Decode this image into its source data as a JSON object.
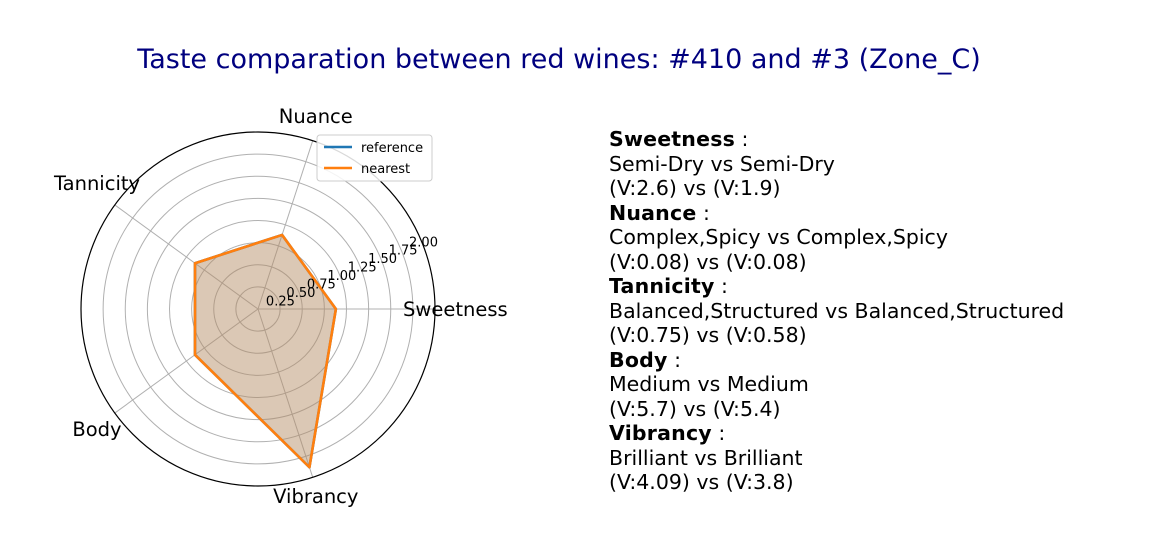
{
  "title": "Taste comparation between red wines: #410 and #3 (Zone_C)",
  "colors": {
    "title": "#00007f",
    "reference": "#1f77b4",
    "nearest": "#ff7f0e",
    "fill": "#b48c64",
    "grid": "#b0b0b0"
  },
  "chart_data": {
    "type": "radar",
    "axes": [
      "Sweetness",
      "Nuance",
      "Tannicity",
      "Body",
      "Vibrancy"
    ],
    "r_ticks": [
      0.25,
      0.5,
      0.75,
      1.0,
      1.25,
      1.5,
      1.75,
      2.0
    ],
    "r_tick_labels": [
      "0.25",
      "0.50",
      "0.75",
      "1.00",
      "1.25",
      "1.50",
      "1.75",
      "2.00"
    ],
    "rlim": [
      0,
      2.0
    ],
    "grid": true,
    "legend": "top-right",
    "series": [
      {
        "name": "reference",
        "values": [
          0.88,
          0.88,
          0.88,
          0.88,
          1.88
        ]
      },
      {
        "name": "nearest",
        "values": [
          0.88,
          0.88,
          0.88,
          0.88,
          1.88
        ]
      }
    ]
  },
  "descriptions": [
    {
      "name": "Sweetness",
      "sep": " :",
      "text": "Semi-Dry vs Semi-Dry",
      "values": "(V:2.6) vs (V:1.9)"
    },
    {
      "name": "Nuance",
      "sep": " :",
      "text": "Complex,Spicy vs Complex,Spicy",
      "values": "(V:0.08) vs (V:0.08)"
    },
    {
      "name": "Tannicity",
      "sep": " :",
      "text": "Balanced,Structured vs Balanced,Structured",
      "values": "(V:0.75) vs (V:0.58)"
    },
    {
      "name": "Body",
      "sep": " :",
      "text": "Medium vs Medium",
      "values": "(V:5.7) vs (V:5.4)"
    },
    {
      "name": "Vibrancy",
      "sep": " :",
      "text": "Brilliant vs Brilliant",
      "values": "(V:4.09) vs (V:3.8)"
    }
  ]
}
